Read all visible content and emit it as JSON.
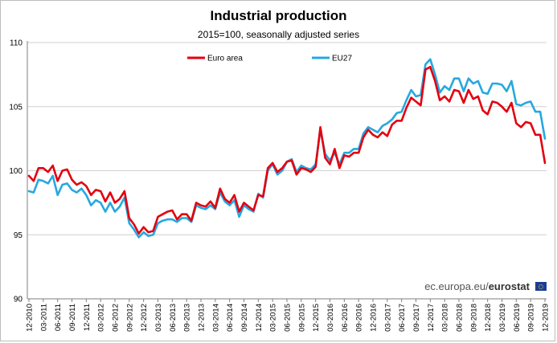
{
  "chart_data": {
    "type": "line",
    "title": "Industrial production",
    "subtitle": "2015=100, seasonally adjusted series",
    "ylim": [
      90,
      110
    ],
    "yticks": [
      90,
      95,
      100,
      105,
      110
    ],
    "grid": "horizontal",
    "legend_position": "top",
    "x": [
      "12-2010",
      "01-2011",
      "02-2011",
      "03-2011",
      "04-2011",
      "05-2011",
      "06-2011",
      "07-2011",
      "08-2011",
      "09-2011",
      "10-2011",
      "11-2011",
      "12-2011",
      "01-2012",
      "02-2012",
      "03-2012",
      "04-2012",
      "05-2012",
      "06-2012",
      "07-2012",
      "08-2012",
      "09-2012",
      "10-2012",
      "11-2012",
      "12-2012",
      "01-2013",
      "02-2013",
      "03-2013",
      "04-2013",
      "05-2013",
      "06-2013",
      "07-2013",
      "08-2013",
      "09-2013",
      "10-2013",
      "11-2013",
      "12-2013",
      "01-2014",
      "02-2014",
      "03-2014",
      "04-2014",
      "05-2014",
      "06-2014",
      "07-2014",
      "08-2014",
      "09-2014",
      "10-2014",
      "11-2014",
      "12-2014",
      "01-2015",
      "02-2015",
      "03-2015",
      "04-2015",
      "05-2015",
      "06-2015",
      "07-2015",
      "08-2015",
      "09-2015",
      "10-2015",
      "11-2015",
      "12-2015",
      "01-2016",
      "02-2016",
      "03-2016",
      "04-2016",
      "05-2016",
      "06-2016",
      "07-2016",
      "08-2016",
      "09-2016",
      "10-2016",
      "11-2016",
      "12-2016",
      "01-2017",
      "02-2017",
      "03-2017",
      "04-2017",
      "05-2017",
      "06-2017",
      "07-2017",
      "08-2017",
      "09-2017",
      "10-2017",
      "11-2017",
      "12-2017",
      "01-2018",
      "02-2018",
      "03-2018",
      "04-2018",
      "05-2018",
      "06-2018",
      "07-2018",
      "08-2018",
      "09-2018",
      "10-2018",
      "11-2018",
      "12-2018",
      "01-2019",
      "02-2019",
      "03-2019",
      "04-2019",
      "05-2019",
      "06-2019",
      "07-2019",
      "08-2019",
      "09-2019",
      "10-2019",
      "11-2019",
      "12-2019"
    ],
    "xtick_labels": [
      "12-2010",
      "03-2011",
      "06-2011",
      "09-2011",
      "12-2011",
      "03-2012",
      "06-2012",
      "09-2012",
      "12-2012",
      "03-2013",
      "06-2013",
      "09-2013",
      "12-2013",
      "03-2014",
      "06-2014",
      "09-2014",
      "12-2014",
      "03-2015",
      "06-2015",
      "09-2015",
      "12-2015",
      "03-2016",
      "06-2016",
      "09-2016",
      "12-2016",
      "03-2017",
      "06-2017",
      "09-2017",
      "12-2017",
      "03-2018",
      "06-2018",
      "09-2018",
      "12-2018",
      "03-2019",
      "06-2019",
      "09-2019",
      "12-2019"
    ],
    "series": [
      {
        "name": "Euro area",
        "color": "#e3000f",
        "values": [
          99.6,
          99.2,
          100.2,
          100.2,
          99.9,
          100.4,
          99.2,
          100.0,
          100.1,
          99.3,
          98.9,
          99.1,
          98.8,
          98.1,
          98.5,
          98.4,
          97.6,
          98.3,
          97.5,
          97.8,
          98.4,
          96.3,
          95.8,
          95.1,
          95.6,
          95.2,
          95.3,
          96.4,
          96.6,
          96.8,
          96.9,
          96.2,
          96.6,
          96.6,
          96.1,
          97.5,
          97.3,
          97.2,
          97.6,
          97.1,
          98.6,
          97.8,
          97.5,
          98.1,
          96.8,
          97.5,
          97.2,
          96.9,
          98.1,
          98.0,
          100.2,
          100.6,
          99.9,
          100.2,
          100.7,
          100.8,
          99.7,
          100.2,
          100.1,
          99.9,
          100.3,
          103.4,
          101.0,
          100.5,
          101.7,
          100.2,
          101.2,
          101.1,
          101.4,
          101.4,
          102.6,
          103.2,
          102.8,
          102.6,
          103.0,
          102.7,
          103.6,
          103.9,
          103.9,
          104.9,
          105.7,
          105.4,
          105.1,
          107.9,
          108.1,
          107.0,
          105.5,
          105.8,
          105.4,
          106.3,
          106.2,
          105.3,
          106.3,
          105.6,
          105.8,
          104.7,
          104.4,
          105.4,
          105.3,
          105.0,
          104.6,
          105.3,
          103.7,
          103.4,
          103.8,
          103.7,
          102.8,
          102.8,
          100.6
        ]
      },
      {
        "name": "EU27",
        "color": "#26a8e0",
        "values": [
          98.4,
          98.3,
          99.3,
          99.2,
          99.0,
          99.6,
          98.1,
          98.9,
          99.0,
          98.5,
          98.3,
          98.6,
          98.1,
          97.3,
          97.7,
          97.5,
          96.8,
          97.5,
          96.8,
          97.2,
          97.9,
          95.9,
          95.4,
          94.8,
          95.2,
          94.9,
          95.0,
          95.9,
          96.1,
          96.2,
          96.2,
          96.0,
          96.3,
          96.3,
          96.0,
          97.3,
          97.1,
          97.0,
          97.3,
          97.0,
          98.3,
          97.6,
          97.3,
          97.7,
          96.4,
          97.3,
          97.0,
          96.8,
          98.2,
          97.9,
          100.0,
          100.5,
          99.7,
          100.0,
          100.7,
          100.9,
          99.9,
          100.4,
          100.2,
          100.1,
          100.5,
          103.2,
          101.3,
          100.8,
          101.4,
          100.5,
          101.4,
          101.4,
          101.7,
          101.7,
          102.9,
          103.4,
          103.2,
          103.0,
          103.5,
          103.7,
          104.0,
          104.5,
          104.6,
          105.5,
          106.3,
          105.8,
          105.9,
          108.3,
          108.7,
          107.5,
          106.1,
          106.6,
          106.3,
          107.2,
          107.2,
          106.2,
          107.2,
          106.8,
          107.0,
          106.1,
          106.0,
          106.8,
          106.8,
          106.7,
          106.2,
          107.0,
          105.2,
          105.1,
          105.3,
          105.4,
          104.6,
          104.6,
          102.5
        ]
      }
    ]
  },
  "source": {
    "prefix": "ec.europa.eu/",
    "brand": "eurostat"
  }
}
